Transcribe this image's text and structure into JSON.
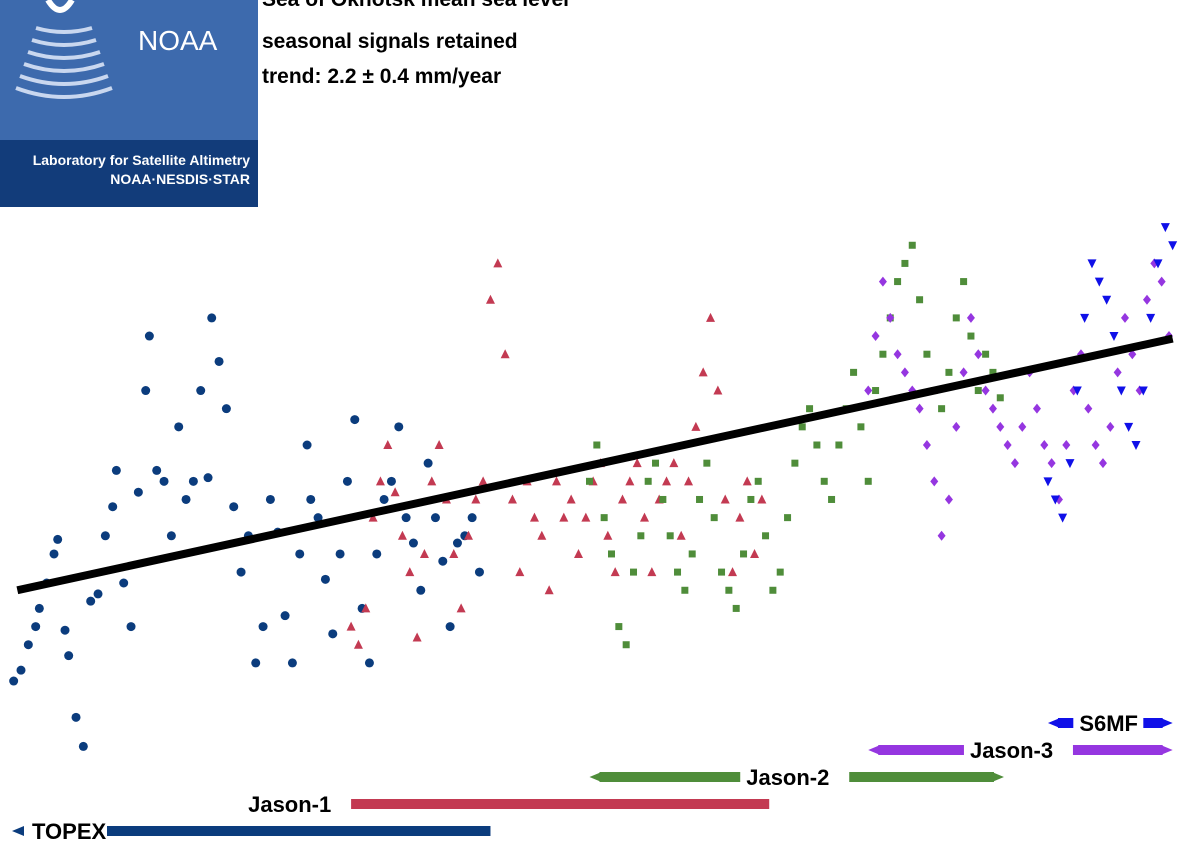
{
  "header": {
    "logo_text": "NOAA",
    "logo_caption_1": "Laboratory for Satellite Altimetry",
    "logo_caption_2": "NOAA·NESDIS·STAR",
    "title_line_1": "Sea of Okhotsk mean sea level",
    "title_line_2": "seasonal signals retained",
    "title_line_3": "trend:  2.2 ± 0.4 mm/year"
  },
  "colors": {
    "TOPEX": "#0b3c7d",
    "Jason-1": "#c33a52",
    "Jason-2": "#4f8d3a",
    "Jason-3": "#9536e0",
    "S6MF": "#1010e8",
    "trend": "#000000",
    "logo_blue": "#3d6aad"
  },
  "chart_data": {
    "type": "scatter",
    "title": "Sea of Okhotsk mean sea level",
    "subtitle": "seasonal signals retained",
    "trend_text": "trend:  2.2 ± 0.4 mm/year",
    "xlabel": "",
    "ylabel": "",
    "xlim": [
      1992.7,
      2024.6
    ],
    "ylim": [
      -90,
      100
    ],
    "grid": false,
    "legend": "mission bars at bottom",
    "trend": {
      "x": [
        1992.9,
        2024.4
      ],
      "y": [
        -35.0,
        34.3
      ]
    },
    "missions": [
      {
        "name": "TOPEX",
        "start": 1992.9,
        "end": 2005.8,
        "label": "TOPEX"
      },
      {
        "name": "Jason-1",
        "start": 2002.0,
        "end": 2013.4,
        "label": "Jason-1"
      },
      {
        "name": "Jason-2",
        "start": 2008.5,
        "end": 2019.8,
        "label": "Jason-2"
      },
      {
        "name": "Jason-3",
        "start": 2016.1,
        "end": 2024.4,
        "label": "Jason-3"
      },
      {
        "name": "S6MF",
        "start": 2021.0,
        "end": 2024.4,
        "label": "S6MF"
      }
    ],
    "series": [
      {
        "name": "TOPEX",
        "marker": "circle",
        "x": [
          1992.8,
          1993.0,
          1993.2,
          1993.4,
          1993.5,
          1993.7,
          1993.9,
          1994.0,
          1994.2,
          1994.3,
          1994.5,
          1994.7,
          1994.9,
          1995.1,
          1995.3,
          1995.5,
          1995.6,
          1995.8,
          1996.0,
          1996.2,
          1996.4,
          1996.5,
          1996.7,
          1996.9,
          1997.1,
          1997.3,
          1997.5,
          1997.7,
          1997.9,
          1998.1,
          1998.2,
          1998.4,
          1998.6,
          1998.8,
          1999.0,
          1999.2,
          1999.4,
          1999.6,
          1999.8,
          2000.0,
          2000.2,
          2000.4,
          2000.6,
          2000.8,
          2000.9,
          2001.1,
          2001.3,
          2001.5,
          2001.7,
          2001.9,
          2002.1,
          2002.3,
          2002.5,
          2002.7,
          2002.9,
          2003.1,
          2003.3,
          2003.5,
          2003.7,
          2003.9,
          2004.1,
          2004.3,
          2004.5,
          2004.7,
          2004.9,
          2005.1,
          2005.3,
          2005.5
        ],
        "y": [
          -60,
          -57,
          -50,
          -45,
          -40,
          -33,
          -25,
          -21,
          -46,
          -53,
          -70,
          -78,
          -38,
          -36,
          -20,
          -12,
          -2,
          -33,
          -45,
          -8,
          20,
          35,
          -2,
          -5,
          -20,
          10,
          -10,
          -5,
          20,
          -4,
          40,
          28,
          15,
          -12,
          -30,
          -20,
          -55,
          -45,
          -10,
          -19,
          -42,
          -55,
          -25,
          5,
          -10,
          -15,
          -32,
          -47,
          -25,
          -5,
          12,
          -40,
          -55,
          -25,
          -10,
          -5,
          10,
          -15,
          -22,
          -35,
          0,
          -15,
          -27,
          -45,
          -22,
          -20,
          -15,
          -30
        ]
      },
      {
        "name": "Jason-1",
        "marker": "triangle",
        "x": [
          2002.0,
          2002.2,
          2002.4,
          2002.6,
          2002.8,
          2003.0,
          2003.2,
          2003.4,
          2003.6,
          2003.8,
          2004.0,
          2004.2,
          2004.4,
          2004.6,
          2004.8,
          2005.0,
          2005.2,
          2005.4,
          2005.6,
          2005.8,
          2006.0,
          2006.2,
          2006.4,
          2006.6,
          2006.8,
          2007.0,
          2007.2,
          2007.4,
          2007.6,
          2007.8,
          2008.0,
          2008.2,
          2008.4,
          2008.6,
          2008.8,
          2009.0,
          2009.2,
          2009.4,
          2009.6,
          2009.8,
          2010.0,
          2010.2,
          2010.4,
          2010.6,
          2010.8,
          2011.0,
          2011.2,
          2011.4,
          2011.6,
          2011.8,
          2012.0,
          2012.2,
          2012.4,
          2012.6,
          2012.8,
          2013.0,
          2013.2
        ],
        "y": [
          -45,
          -50,
          -40,
          -15,
          -5,
          5,
          -8,
          -20,
          -30,
          -48,
          -25,
          -5,
          5,
          -10,
          -25,
          -40,
          -20,
          -10,
          -5,
          45,
          55,
          30,
          -10,
          -30,
          -5,
          -15,
          -20,
          -35,
          -5,
          -15,
          -10,
          -25,
          -15,
          -5,
          0,
          -20,
          -30,
          -10,
          -5,
          0,
          -15,
          -30,
          -10,
          -5,
          0,
          -20,
          -5,
          10,
          25,
          40,
          20,
          -10,
          -30,
          -15,
          -5,
          -25,
          -10
        ]
      },
      {
        "name": "Jason-2",
        "marker": "square",
        "x": [
          2008.5,
          2008.7,
          2008.9,
          2009.1,
          2009.3,
          2009.5,
          2009.7,
          2009.9,
          2010.1,
          2010.3,
          2010.5,
          2010.7,
          2010.9,
          2011.1,
          2011.3,
          2011.5,
          2011.7,
          2011.9,
          2012.1,
          2012.3,
          2012.5,
          2012.7,
          2012.9,
          2013.1,
          2013.3,
          2013.5,
          2013.7,
          2013.9,
          2014.1,
          2014.3,
          2014.5,
          2014.7,
          2014.9,
          2015.1,
          2015.3,
          2015.5,
          2015.7,
          2015.9,
          2016.1,
          2016.3,
          2016.5,
          2016.7,
          2016.9,
          2017.1,
          2017.3,
          2017.5,
          2017.7,
          2017.9,
          2018.1,
          2018.3,
          2018.5,
          2018.7,
          2018.9,
          2019.1,
          2019.3,
          2019.5,
          2019.7
        ],
        "y": [
          -5,
          5,
          -15,
          -25,
          -45,
          -50,
          -30,
          -20,
          -5,
          0,
          -10,
          -20,
          -30,
          -35,
          -25,
          -10,
          0,
          -15,
          -30,
          -35,
          -40,
          -25,
          -10,
          -5,
          -20,
          -35,
          -30,
          -15,
          0,
          10,
          15,
          5,
          -5,
          -10,
          5,
          15,
          25,
          10,
          -5,
          20,
          30,
          40,
          50,
          55,
          60,
          45,
          30,
          20,
          15,
          25,
          40,
          50,
          35,
          20,
          30,
          25,
          18
        ]
      },
      {
        "name": "Jason-3",
        "marker": "diamond",
        "x": [
          2016.1,
          2016.3,
          2016.5,
          2016.7,
          2016.9,
          2017.1,
          2017.3,
          2017.5,
          2017.7,
          2017.9,
          2018.1,
          2018.3,
          2018.5,
          2018.7,
          2018.9,
          2019.1,
          2019.3,
          2019.5,
          2019.7,
          2019.9,
          2020.1,
          2020.3,
          2020.5,
          2020.7,
          2020.9,
          2021.1,
          2021.3,
          2021.5,
          2021.7,
          2021.9,
          2022.1,
          2022.3,
          2022.5,
          2022.7,
          2022.9,
          2023.1,
          2023.3,
          2023.5,
          2023.7,
          2023.9,
          2024.1,
          2024.3
        ],
        "y": [
          20,
          35,
          50,
          40,
          30,
          25,
          20,
          15,
          5,
          -5,
          -20,
          -10,
          10,
          25,
          40,
          30,
          20,
          15,
          10,
          5,
          0,
          10,
          25,
          15,
          5,
          0,
          -10,
          5,
          20,
          30,
          15,
          5,
          0,
          10,
          25,
          40,
          30,
          20,
          45,
          55,
          50,
          35
        ]
      },
      {
        "name": "S6MF",
        "marker": "triangle-down",
        "x": [
          2021.0,
          2021.2,
          2021.4,
          2021.6,
          2021.8,
          2022.0,
          2022.2,
          2022.4,
          2022.6,
          2022.8,
          2023.0,
          2023.2,
          2023.4,
          2023.6,
          2023.8,
          2024.0,
          2024.2,
          2024.4
        ],
        "y": [
          -5,
          -10,
          -15,
          0,
          20,
          40,
          55,
          50,
          45,
          35,
          20,
          10,
          5,
          20,
          40,
          55,
          65,
          60
        ]
      }
    ]
  }
}
